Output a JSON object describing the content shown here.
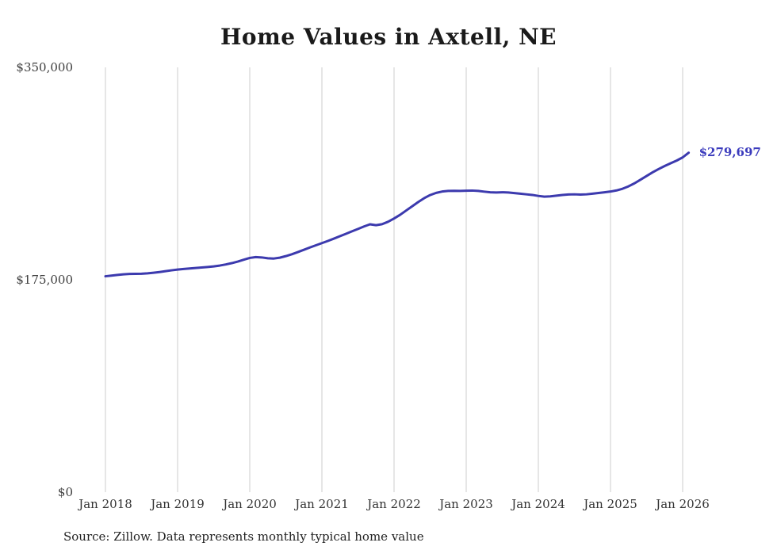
{
  "title": "Home Values in Axtell, NE",
  "source_note": "Source: Zillow. Data represents monthly typical home value",
  "end_label": "$279,697",
  "colors": {
    "line": "#3c3aae",
    "end_label": "#3b3bbd",
    "grid": "#cccccc",
    "text": "#333333"
  },
  "chart_data": {
    "type": "line",
    "title": "Home Values in Axtell, NE",
    "xlabel": "",
    "ylabel": "",
    "ylim": [
      0,
      350000
    ],
    "grid": "vertical-only",
    "legend": "none",
    "x_start_month": "2018-01",
    "x_frequency": "monthly",
    "x_tick_labels": [
      "Jan 2018",
      "Jan 2019",
      "Jan 2020",
      "Jan 2021",
      "Jan 2022",
      "Jan 2023",
      "Jan 2024",
      "Jan 2025",
      "Jan 2026"
    ],
    "y_ticks": [
      {
        "value": 0,
        "label": "$0"
      },
      {
        "value": 175000,
        "label": "$175,000"
      },
      {
        "value": 350000,
        "label": "$350,000"
      }
    ],
    "end_annotation": {
      "value": 279697,
      "label": "$279,697"
    },
    "series": [
      {
        "name": "Typical home value",
        "values": [
          177900,
          178400,
          179000,
          179500,
          179800,
          179900,
          180000,
          180300,
          180800,
          181400,
          182100,
          182800,
          183400,
          183900,
          184300,
          184700,
          185100,
          185500,
          186000,
          186700,
          187600,
          188700,
          190000,
          191500,
          193000,
          193700,
          193400,
          192700,
          192500,
          193200,
          194500,
          196000,
          197800,
          199700,
          201600,
          203400,
          205200,
          207000,
          208900,
          210900,
          212900,
          214900,
          216900,
          218900,
          220700,
          220000,
          220800,
          222800,
          225500,
          228500,
          232000,
          235500,
          239000,
          242200,
          244800,
          246600,
          247700,
          248200,
          248300,
          248200,
          248400,
          248500,
          248200,
          247600,
          247100,
          246900,
          247100,
          246900,
          246400,
          245900,
          245400,
          244900,
          244100,
          243500,
          243700,
          244300,
          244900,
          245300,
          245400,
          245200,
          245400,
          245900,
          246500,
          247100,
          247700,
          248600,
          250000,
          252000,
          254500,
          257500,
          260500,
          263500,
          266200,
          268700,
          271000,
          273200,
          275800,
          279697
        ]
      }
    ]
  }
}
